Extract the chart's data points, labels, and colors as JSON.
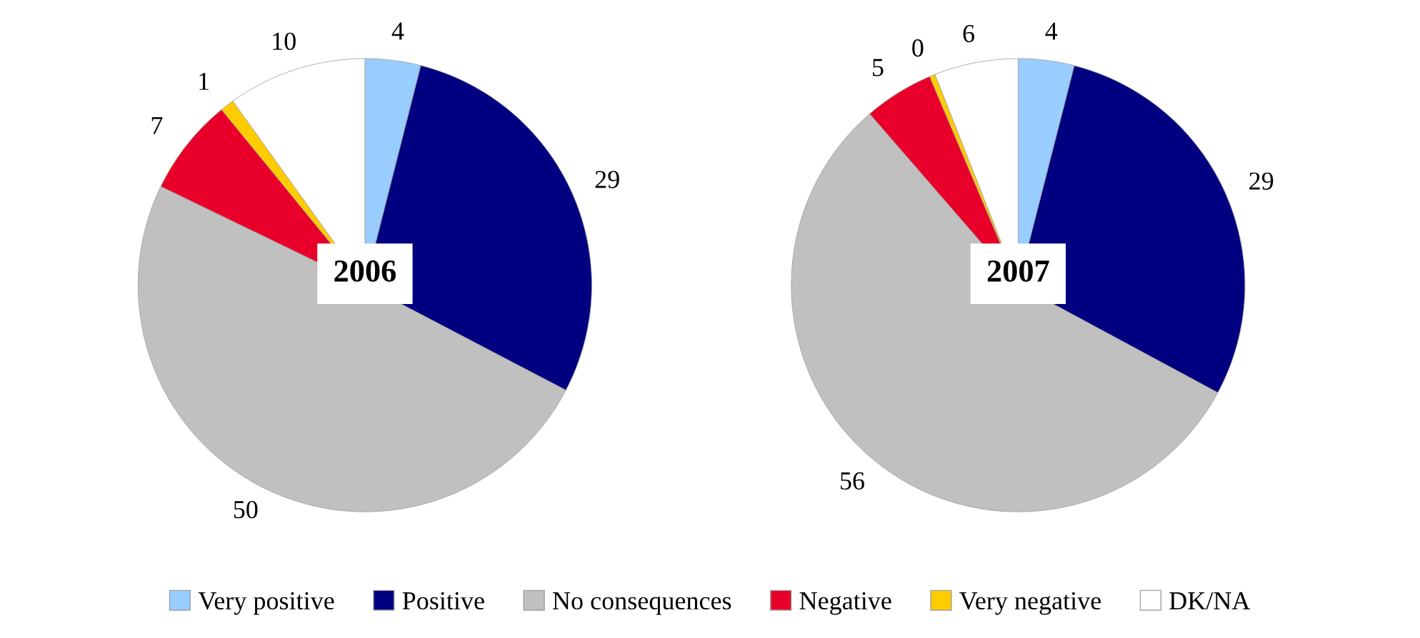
{
  "chart_data": [
    {
      "type": "pie",
      "title": "2006",
      "categories": [
        "Very positive",
        "Positive",
        "No consequences",
        "Negative",
        "Very negative",
        "DK/NA"
      ],
      "values": [
        4,
        29,
        50,
        7,
        1,
        10
      ],
      "colors": [
        "#99ccff",
        "#000080",
        "#c0c0c0",
        "#e8002a",
        "#ffcc00",
        "#ffffff"
      ],
      "data_labels": true,
      "legend": "bottom"
    },
    {
      "type": "pie",
      "title": "2007",
      "values": [
        4,
        29,
        56,
        5,
        0.4,
        6
      ],
      "value_labels": [
        "4",
        "29",
        "56",
        "5",
        "0",
        "6"
      ],
      "colors": [
        "#99ccff",
        "#000080",
        "#c0c0c0",
        "#e8002a",
        "#ffcc00",
        "#ffffff"
      ]
    }
  ]
}
